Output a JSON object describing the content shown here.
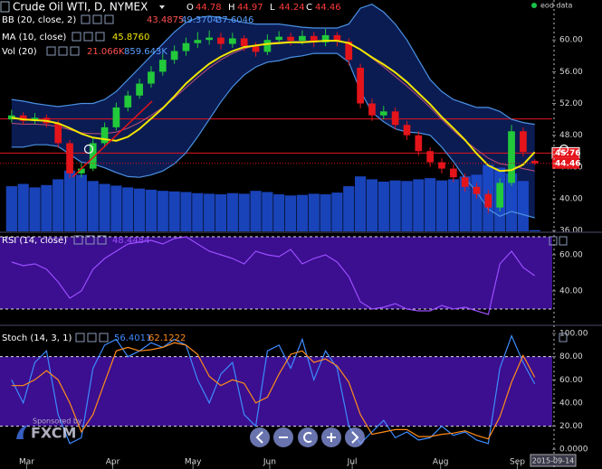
{
  "app": {
    "eod_label": "eod data",
    "sponsor": "Sponsored by",
    "brand": "FXCM"
  },
  "chart_data": [
    {
      "type": "candlestick",
      "title": "Crude Oil WTI, D, NYMEX",
      "ohlc_letters": [
        "O",
        "H",
        "L",
        "C"
      ],
      "xlim": [
        -1,
        46.5
      ],
      "ylim": [
        35.9,
        65.03
      ],
      "yticks": [
        {
          "value": 36,
          "label": "36.00"
        },
        {
          "value": 40,
          "label": "40.00"
        },
        {
          "value": 44,
          "label": "44.00"
        },
        {
          "value": 48,
          "label": "48.00"
        },
        {
          "value": 52,
          "label": "52.00"
        },
        {
          "value": 56,
          "label": "56.00"
        },
        {
          "value": 60,
          "label": "60.00"
        }
      ],
      "up_color": "#22c93a",
      "down_color": "#e4141b",
      "open": [
        50.0,
        50.5,
        49.8,
        50.2,
        49.5,
        47.0,
        43.2,
        43.8,
        47.0,
        49.0,
        51.5,
        53.0,
        54.5,
        56.0,
        57.5,
        58.6,
        59.6,
        60.0,
        60.3,
        59.5,
        60.2,
        59.2,
        58.5,
        60.0,
        60.4,
        59.9,
        60.5,
        59.7,
        60.6,
        59.8,
        56.5,
        52.0,
        50.5,
        51.0,
        49.3,
        48.0,
        46.0,
        44.6,
        43.8,
        42.7,
        41.5,
        40.6,
        38.9,
        42.0,
        48.5,
        44.78
      ],
      "high": [
        51.2,
        50.9,
        50.8,
        50.6,
        49.9,
        47.4,
        44.5,
        47.6,
        49.6,
        52.1,
        53.6,
        55.1,
        56.7,
        58.2,
        59.3,
        60.3,
        61.0,
        61.2,
        60.9,
        60.9,
        60.6,
        59.7,
        60.7,
        61.1,
        60.9,
        61.2,
        61.0,
        61.4,
        61.0,
        60.2,
        57.0,
        52.6,
        51.7,
        51.5,
        49.8,
        48.5,
        46.5,
        45.1,
        44.3,
        43.2,
        42.0,
        41.1,
        42.6,
        49.3,
        49.0,
        44.97
      ],
      "low": [
        49.6,
        49.3,
        49.4,
        49.0,
        46.4,
        42.6,
        42.7,
        43.5,
        46.5,
        48.6,
        51.0,
        52.6,
        54.0,
        55.5,
        57.0,
        58.0,
        59.0,
        59.4,
        58.8,
        59.0,
        58.6,
        57.9,
        58.1,
        59.5,
        59.3,
        59.4,
        59.1,
        59.2,
        59.2,
        56.8,
        51.4,
        49.8,
        50.0,
        48.7,
        47.4,
        45.4,
        44.0,
        43.2,
        42.1,
        40.9,
        40.0,
        38.2,
        38.4,
        41.6,
        45.3,
        44.24
      ],
      "close": [
        50.5,
        49.8,
        50.2,
        49.5,
        47.0,
        43.2,
        43.8,
        47.0,
        49.0,
        51.5,
        53.0,
        54.5,
        56.0,
        57.5,
        58.6,
        59.6,
        60.0,
        60.3,
        59.5,
        60.2,
        59.2,
        58.5,
        60.0,
        60.4,
        59.9,
        60.5,
        59.7,
        60.6,
        59.8,
        57.5,
        52.0,
        50.5,
        51.0,
        49.3,
        48.0,
        46.0,
        44.6,
        43.8,
        42.7,
        41.5,
        40.6,
        38.9,
        42.0,
        48.5,
        45.9,
        44.46
      ],
      "bb": {
        "name": "BB (20, close, 2)",
        "color": "#4a90e2",
        "mid_color": "#c0507a",
        "fill": "#0c1f5c",
        "upper": [
          52.5,
          52.3,
          52.0,
          51.8,
          51.6,
          51.8,
          52.0,
          52.0,
          52.5,
          53.5,
          55.0,
          56.5,
          58.0,
          59.5,
          61.0,
          62.2,
          62.8,
          63.0,
          62.8,
          62.5,
          62.2,
          62.0,
          62.0,
          62.0,
          61.8,
          61.6,
          61.5,
          61.5,
          61.5,
          62.0,
          64.0,
          64.5,
          63.5,
          62.0,
          60.0,
          57.5,
          55.0,
          53.5,
          52.5,
          52.0,
          51.5,
          51.5,
          51.0,
          50.0,
          49.6,
          49.3704
        ],
        "mid": [
          49.5,
          49.4,
          49.4,
          49.3,
          49.1,
          48.7,
          48.3,
          48.2,
          48.2,
          48.4,
          48.9,
          49.6,
          50.5,
          51.5,
          52.7,
          54.0,
          55.3,
          56.5,
          57.5,
          58.3,
          58.9,
          59.3,
          59.6,
          59.7,
          59.8,
          59.8,
          59.9,
          59.9,
          59.9,
          59.6,
          58.8,
          57.7,
          56.6,
          55.4,
          54.2,
          52.9,
          51.5,
          50.0,
          48.6,
          47.3,
          46.2,
          45.1,
          44.4,
          44.2,
          43.8,
          43.4875
        ],
        "lower": [
          46.5,
          46.5,
          46.8,
          46.8,
          46.6,
          45.6,
          44.6,
          44.4,
          43.9,
          43.3,
          42.8,
          42.7,
          43.0,
          43.5,
          44.4,
          45.8,
          47.8,
          50.0,
          52.2,
          54.1,
          55.6,
          56.6,
          57.2,
          57.4,
          57.8,
          58.0,
          58.3,
          58.3,
          58.3,
          57.2,
          53.6,
          50.9,
          49.7,
          48.8,
          48.4,
          48.3,
          48.0,
          46.5,
          44.7,
          42.6,
          40.9,
          38.7,
          37.8,
          38.4,
          38.0,
          37.6046
        ]
      },
      "ma": {
        "name": "MA (10, close)",
        "color": "#f2e600",
        "values": [
          50.2,
          50.0,
          49.9,
          49.8,
          49.5,
          48.9,
          48.2,
          47.7,
          47.5,
          47.3,
          47.8,
          48.8,
          50.1,
          51.4,
          52.9,
          54.5,
          55.8,
          57.0,
          57.9,
          58.6,
          59.1,
          59.3,
          59.5,
          59.6,
          59.7,
          59.7,
          59.8,
          59.9,
          59.9,
          59.6,
          58.8,
          57.8,
          56.9,
          55.9,
          54.7,
          53.3,
          51.9,
          50.3,
          48.9,
          47.4,
          45.7,
          44.2,
          43.5,
          43.6,
          44.3,
          45.876
        ],
        "value_labels": [
          null,
          null,
          null,
          null,
          null,
          null,
          null,
          null,
          null,
          null,
          null,
          null,
          null,
          null,
          null,
          null,
          null,
          null,
          null,
          null,
          null,
          null,
          null,
          null,
          null,
          null,
          null,
          null,
          null,
          null,
          null,
          null,
          null,
          null,
          null,
          null,
          null,
          null,
          null,
          null,
          null,
          null,
          null,
          null,
          null,
          "45.8760"
        ]
      },
      "volume": {
        "name": "Vol (20)",
        "color": "#1d4fd8",
        "ylim": [
          0,
          4000
        ],
        "ma_label": "859.643K",
        "values": [
          780,
          820,
          760,
          800,
          900,
          1050,
          980,
          870,
          820,
          790,
          760,
          740,
          720,
          700,
          690,
          680,
          660,
          650,
          640,
          660,
          650,
          700,
          680,
          640,
          620,
          630,
          650,
          640,
          670,
          780,
          950,
          900,
          860,
          880,
          870,
          900,
          920,
          880,
          900,
          950,
          980,
          1150,
          1100,
          1000,
          870,
          21.066
        ],
        "value_labels": [
          null,
          null,
          null,
          null,
          null,
          null,
          null,
          null,
          null,
          null,
          null,
          null,
          null,
          null,
          null,
          null,
          null,
          null,
          null,
          null,
          null,
          null,
          null,
          null,
          null,
          null,
          null,
          null,
          null,
          null,
          null,
          null,
          null,
          null,
          null,
          null,
          null,
          null,
          null,
          null,
          null,
          null,
          null,
          null,
          null,
          "21.066K"
        ]
      },
      "levels": [
        50.05,
        45.76
      ],
      "level_color": "#e4141b"
    },
    {
      "type": "line",
      "name": "RSI (14, close)",
      "color": "#9b4dff",
      "xlim": [
        -1,
        46.5
      ],
      "ylim": [
        22,
        72
      ],
      "yticks": [
        {
          "value": 40,
          "label": "40.00"
        },
        {
          "value": 60,
          "label": "60.00"
        }
      ],
      "bands": [
        30,
        70
      ],
      "band_fill": "#3b0f8f",
      "values": [
        56,
        54,
        55,
        52,
        45,
        36,
        40,
        52,
        58,
        62,
        66,
        67,
        68,
        66,
        69,
        70,
        66,
        62,
        60,
        58,
        55,
        62,
        60,
        59,
        63,
        55,
        58,
        60,
        56,
        48,
        34,
        30,
        31,
        33,
        30,
        29,
        29,
        32,
        30,
        31,
        29,
        27,
        55,
        62,
        53,
        48.4484
      ]
    },
    {
      "type": "line",
      "name": "Stoch (14, 3, 1)",
      "xlim": [
        -1,
        46.5
      ],
      "ylim": [
        -17,
        105.5
      ],
      "yticks": [
        {
          "value": 0,
          "label": "0.0000"
        },
        {
          "value": 20,
          "label": "20.00"
        },
        {
          "value": 40,
          "label": "40.00"
        },
        {
          "value": 60,
          "label": "60.00"
        },
        {
          "value": 80,
          "label": "80.00"
        },
        {
          "value": 100,
          "label": "100.00"
        }
      ],
      "xticks": [
        {
          "value": 1.3,
          "label": "Mar"
        },
        {
          "value": 8.7,
          "label": "Apr"
        },
        {
          "value": 15.6,
          "label": "May"
        },
        {
          "value": 22.2,
          "label": "Jun"
        },
        {
          "value": 29.3,
          "label": "Jul"
        },
        {
          "value": 36.9,
          "label": "Aug"
        },
        {
          "value": 43.5,
          "label": "Sep"
        }
      ],
      "date_label": "2015-09-14",
      "bands": [
        20,
        80
      ],
      "band_fill": "#3b0f8f",
      "series": [
        {
          "color": "#3d8bff",
          "values": [
            60,
            40,
            75,
            85,
            30,
            5,
            10,
            70,
            90,
            95,
            80,
            85,
            92,
            88,
            95,
            90,
            60,
            40,
            65,
            75,
            30,
            20,
            85,
            90,
            70,
            95,
            60,
            85,
            70,
            20,
            5,
            15,
            25,
            10,
            15,
            8,
            10,
            20,
            12,
            15,
            8,
            5,
            70,
            98,
            75,
            56.4011
          ]
        },
        {
          "color": "#ff8c1a",
          "values": [
            55,
            55,
            60,
            68,
            60,
            40,
            15,
            30,
            58,
            85,
            88,
            85,
            86,
            88,
            92,
            90,
            82,
            63,
            55,
            60,
            57,
            40,
            45,
            65,
            82,
            85,
            75,
            78,
            72,
            58,
            30,
            13,
            15,
            17,
            17,
            11,
            11,
            13,
            14,
            16,
            12,
            9,
            28,
            58,
            81,
            62.1222
          ]
        }
      ]
    }
  ]
}
